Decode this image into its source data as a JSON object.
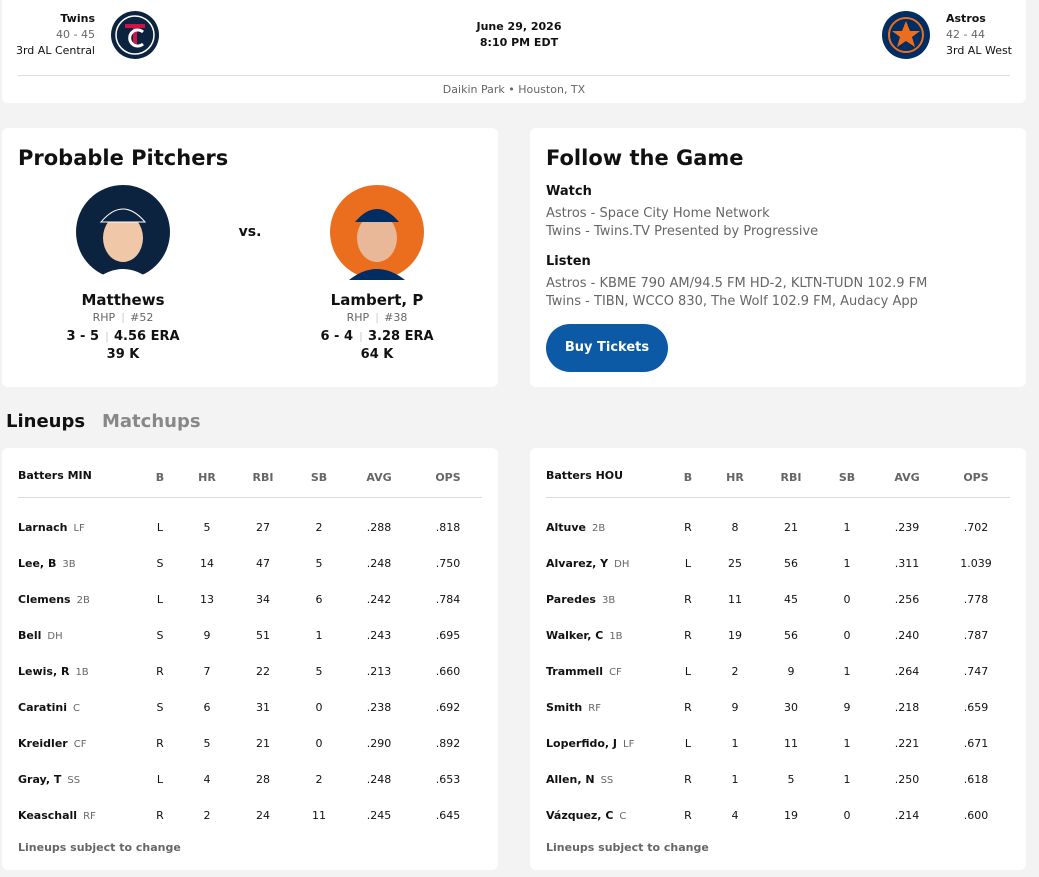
{
  "header": {
    "away": {
      "name": "Twins",
      "record": "40 - 45",
      "standing": "3rd AL Central"
    },
    "date": "June 29, 2026",
    "time": "8:10 PM EDT",
    "home": {
      "name": "Astros",
      "record": "42 - 44",
      "standing": "3rd AL West"
    },
    "venue": "Daikin Park • Houston, TX"
  },
  "pitchers": {
    "title": "Probable Pitchers",
    "vs": "vs.",
    "away": {
      "name": "Matthews",
      "throws": "RHP",
      "number": "#52",
      "record": "3 - 5",
      "era": "4.56 ERA",
      "strikeouts": "39 K"
    },
    "home": {
      "name": "Lambert, P",
      "throws": "RHP",
      "number": "#38",
      "record": "6 - 4",
      "era": "3.28 ERA",
      "strikeouts": "64 K"
    }
  },
  "follow": {
    "title": "Follow the Game",
    "watch_label": "Watch",
    "watch": [
      "Astros - Space City Home Network",
      "Twins - Twins.TV Presented by Progressive"
    ],
    "listen_label": "Listen",
    "listen": [
      "Astros - KBME 790 AM/94.5 FM HD-2, KLTN-TUDN 102.9 FM",
      "Twins - TIBN, WCCO 830, The Wolf 102.9 FM, Audacy App"
    ],
    "button": "Buy Tickets"
  },
  "tabs": [
    "Lineups",
    "Matchups"
  ],
  "lineups": [
    {
      "title": "Batters MIN",
      "columns": [
        "B",
        "HR",
        "RBI",
        "SB",
        "AVG",
        "OPS"
      ],
      "rows": [
        {
          "name": "Larnach",
          "pos": "LF",
          "stats": [
            "L",
            "5",
            "27",
            "2",
            ".288",
            ".818"
          ]
        },
        {
          "name": "Lee, B",
          "pos": "3B",
          "stats": [
            "S",
            "14",
            "47",
            "5",
            ".248",
            ".750"
          ]
        },
        {
          "name": "Clemens",
          "pos": "2B",
          "stats": [
            "L",
            "13",
            "34",
            "6",
            ".242",
            ".784"
          ]
        },
        {
          "name": "Bell",
          "pos": "DH",
          "stats": [
            "S",
            "9",
            "51",
            "1",
            ".243",
            ".695"
          ]
        },
        {
          "name": "Lewis, R",
          "pos": "1B",
          "stats": [
            "R",
            "7",
            "22",
            "5",
            ".213",
            ".660"
          ]
        },
        {
          "name": "Caratini",
          "pos": "C",
          "stats": [
            "S",
            "6",
            "31",
            "0",
            ".238",
            ".692"
          ]
        },
        {
          "name": "Kreidler",
          "pos": "CF",
          "stats": [
            "R",
            "5",
            "21",
            "0",
            ".290",
            ".892"
          ]
        },
        {
          "name": "Gray, T",
          "pos": "SS",
          "stats": [
            "L",
            "4",
            "28",
            "2",
            ".248",
            ".653"
          ]
        },
        {
          "name": "Keaschall",
          "pos": "RF",
          "stats": [
            "R",
            "2",
            "24",
            "11",
            ".245",
            ".645"
          ]
        }
      ],
      "note": "Lineups subject to change"
    },
    {
      "title": "Batters HOU",
      "columns": [
        "B",
        "HR",
        "RBI",
        "SB",
        "AVG",
        "OPS"
      ],
      "rows": [
        {
          "name": "Altuve",
          "pos": "2B",
          "stats": [
            "R",
            "8",
            "21",
            "1",
            ".239",
            ".702"
          ]
        },
        {
          "name": "Alvarez, Y",
          "pos": "DH",
          "stats": [
            "L",
            "25",
            "56",
            "1",
            ".311",
            "1.039"
          ]
        },
        {
          "name": "Paredes",
          "pos": "3B",
          "stats": [
            "R",
            "11",
            "45",
            "0",
            ".256",
            ".778"
          ]
        },
        {
          "name": "Walker, C",
          "pos": "1B",
          "stats": [
            "R",
            "19",
            "56",
            "0",
            ".240",
            ".787"
          ]
        },
        {
          "name": "Trammell",
          "pos": "CF",
          "stats": [
            "L",
            "2",
            "9",
            "1",
            ".264",
            ".747"
          ]
        },
        {
          "name": "Smith",
          "pos": "RF",
          "stats": [
            "R",
            "9",
            "30",
            "9",
            ".218",
            ".659"
          ]
        },
        {
          "name": "Loperfido, J",
          "pos": "LF",
          "stats": [
            "L",
            "1",
            "11",
            "1",
            ".221",
            ".671"
          ]
        },
        {
          "name": "Allen, N",
          "pos": "SS",
          "stats": [
            "R",
            "1",
            "5",
            "1",
            ".250",
            ".618"
          ]
        },
        {
          "name": "Vázquez, C",
          "pos": "C",
          "stats": [
            "R",
            "4",
            "19",
            "0",
            ".214",
            ".600"
          ]
        }
      ],
      "note": "Lineups subject to change"
    }
  ]
}
